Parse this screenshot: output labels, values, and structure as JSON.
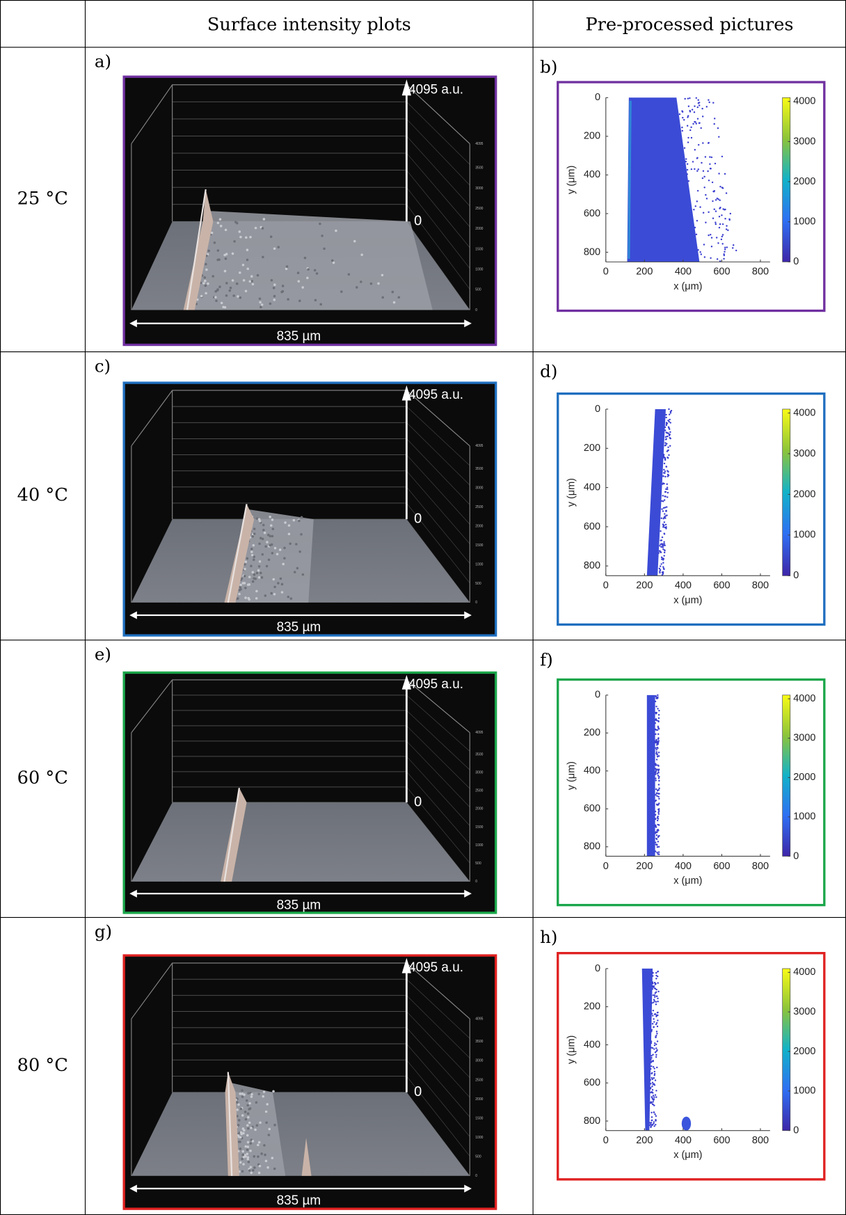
{
  "table": {
    "columns": [
      "Surface intensity plots",
      "Pre-processed pictures"
    ],
    "rows": [
      {
        "label": "25 °C",
        "frame_color": "#7030a0",
        "surface": {
          "panel": "a)",
          "top_label": "4095 a.u.",
          "zero_label": "0",
          "width_label": "835 µm",
          "z_ticks": [
            4095,
            3500,
            3000,
            2500,
            2000,
            1500,
            1000,
            500,
            0
          ]
        },
        "picture": {
          "panel": "b)",
          "x_label": "x (μm)",
          "y_label": "y (μm)",
          "xlim": [
            0,
            850
          ],
          "ylim": [
            0,
            850
          ],
          "x_ticks": [
            0,
            200,
            400,
            600,
            800
          ],
          "y_ticks": [
            0,
            200,
            400,
            600,
            800
          ],
          "colorbar_lim": [
            0,
            4095
          ],
          "colorbar_ticks": [
            0,
            1000,
            2000,
            3000,
            4000
          ]
        }
      },
      {
        "label": "40 °C",
        "frame_color": "#1f6fbf",
        "surface": {
          "panel": "c)",
          "top_label": "4095 a.u.",
          "zero_label": "0",
          "width_label": "835 µm",
          "z_ticks": [
            4095,
            3500,
            3000,
            2500,
            2000,
            1500,
            1000,
            500,
            0
          ]
        },
        "picture": {
          "panel": "d)",
          "x_label": "x (μm)",
          "y_label": "y (μm)",
          "xlim": [
            0,
            850
          ],
          "ylim": [
            0,
            850
          ],
          "x_ticks": [
            0,
            200,
            400,
            600,
            800
          ],
          "y_ticks": [
            0,
            200,
            400,
            600,
            800
          ],
          "colorbar_lim": [
            0,
            4095
          ],
          "colorbar_ticks": [
            0,
            1000,
            2000,
            3000,
            4000
          ]
        }
      },
      {
        "label": "60 °C",
        "frame_color": "#1aa64a",
        "surface": {
          "panel": "e)",
          "top_label": "4095 a.u.",
          "zero_label": "0",
          "width_label": "835 µm",
          "z_ticks": [
            4095,
            3500,
            3000,
            2500,
            2000,
            1500,
            1000,
            500,
            0
          ]
        },
        "picture": {
          "panel": "f)",
          "x_label": "x (μm)",
          "y_label": "y (μm)",
          "xlim": [
            0,
            850
          ],
          "ylim": [
            0,
            850
          ],
          "x_ticks": [
            0,
            200,
            400,
            600,
            800
          ],
          "y_ticks": [
            0,
            200,
            400,
            600,
            800
          ],
          "colorbar_lim": [
            0,
            4095
          ],
          "colorbar_ticks": [
            0,
            1000,
            2000,
            3000,
            4000
          ]
        }
      },
      {
        "label": "80 °C",
        "frame_color": "#e02020",
        "surface": {
          "panel": "g)",
          "top_label": "4095 a.u.",
          "zero_label": "0",
          "width_label": "835 µm",
          "z_ticks": [
            4095,
            3500,
            3000,
            2500,
            2000,
            1500,
            1000,
            500,
            0
          ]
        },
        "picture": {
          "panel": "h)",
          "x_label": "x (μm)",
          "y_label": "y (μm)",
          "xlim": [
            0,
            850
          ],
          "ylim": [
            0,
            850
          ],
          "x_ticks": [
            0,
            200,
            400,
            600,
            800
          ],
          "y_ticks": [
            0,
            200,
            400,
            600,
            800
          ],
          "colorbar_lim": [
            0,
            4095
          ],
          "colorbar_ticks": [
            0,
            1000,
            2000,
            3000,
            4000
          ]
        }
      }
    ]
  }
}
